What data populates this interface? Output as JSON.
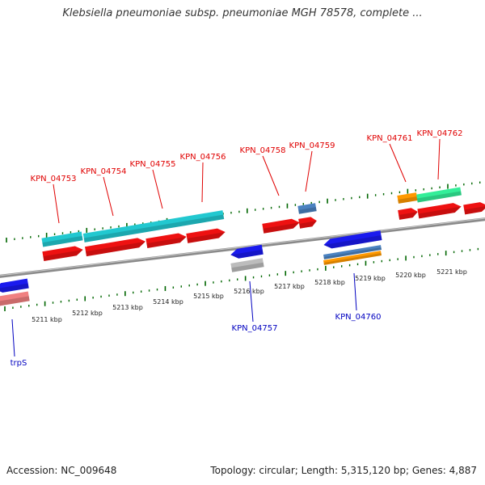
{
  "title": "Klebsiella pneumoniae subsp. pneumoniae MGH 78578, complete ...",
  "footer": {
    "accession": "Accession: NC_009648",
    "summary": "Topology: circular; Length: 5,315,120 bp; Genes: 4,887"
  },
  "scale_labels": [
    "5211 kbp",
    "5212 kbp",
    "5213 kbp",
    "5214 kbp",
    "5215 kbp",
    "5216 kbp",
    "5217 kbp",
    "5218 kbp",
    "5219 kbp",
    "5220 kbp",
    "5221 kbp"
  ],
  "gene_labels": [
    {
      "id": "KPN_04753",
      "color": "#e00000"
    },
    {
      "id": "KPN_04754",
      "color": "#e00000"
    },
    {
      "id": "KPN_04755",
      "color": "#e00000"
    },
    {
      "id": "KPN_04756",
      "color": "#e00000"
    },
    {
      "id": "KPN_04758",
      "color": "#e00000"
    },
    {
      "id": "KPN_04759",
      "color": "#e00000"
    },
    {
      "id": "KPN_04761",
      "color": "#e00000"
    },
    {
      "id": "KPN_04762",
      "color": "#e00000"
    },
    {
      "id": "KPN_04757",
      "color": "#0000c0"
    },
    {
      "id": "KPN_04760",
      "color": "#0000c0"
    },
    {
      "id": "trpS",
      "color": "#0000c0"
    }
  ],
  "colors": {
    "backbone": "#8a8a8a",
    "cds_forward": "#ee1111",
    "cds_reverse": "#1a1aee",
    "gene_cyan": "#22c8d0",
    "gene_green": "#33ee99",
    "gene_orange": "#ff9900",
    "gene_steel": "#4b82c0",
    "gene_grey": "#bcbcbc",
    "gene_pink": "#f08080",
    "tick": "#006600"
  }
}
